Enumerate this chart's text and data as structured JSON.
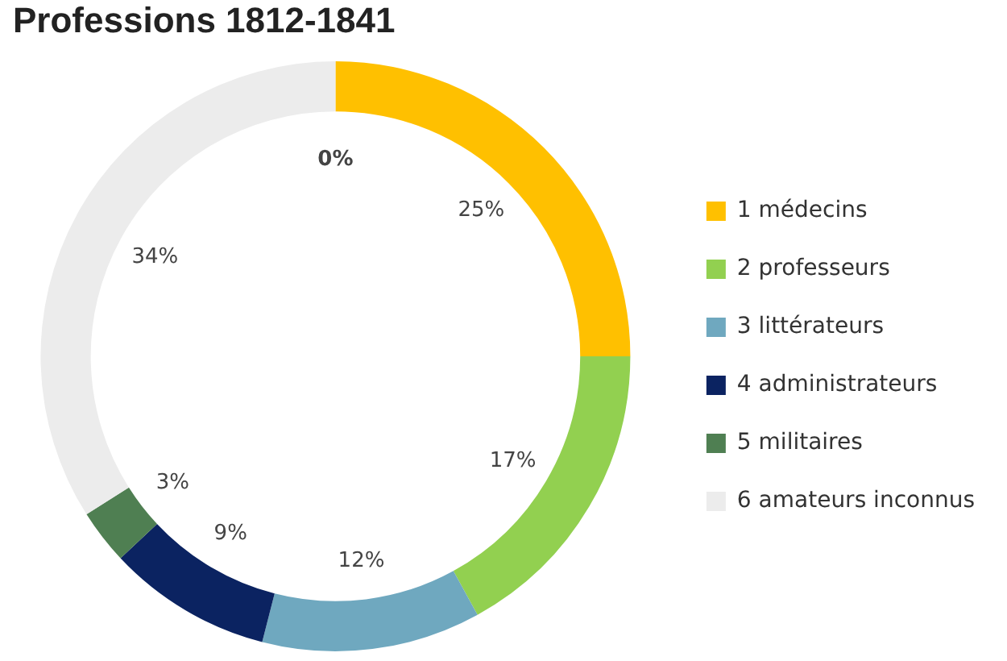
{
  "chart_data": {
    "type": "donut",
    "title": "Professions 1812-1841",
    "categories": [
      "1 médecins",
      "2 professeurs",
      "3 littérateurs",
      "4 administrateurs",
      "5 militaires",
      "6 amateurs inconnus"
    ],
    "values": [
      25,
      17,
      12,
      9,
      3,
      34
    ],
    "colors": [
      "#ffc000",
      "#92d050",
      "#6fa8bf",
      "#0b2361",
      "#4f7f52",
      "#ececec"
    ],
    "value_labels": [
      "25%",
      "17%",
      "12%",
      "9%",
      "3%",
      "34%"
    ],
    "legend": "right",
    "annotations": [
      "0%"
    ]
  }
}
